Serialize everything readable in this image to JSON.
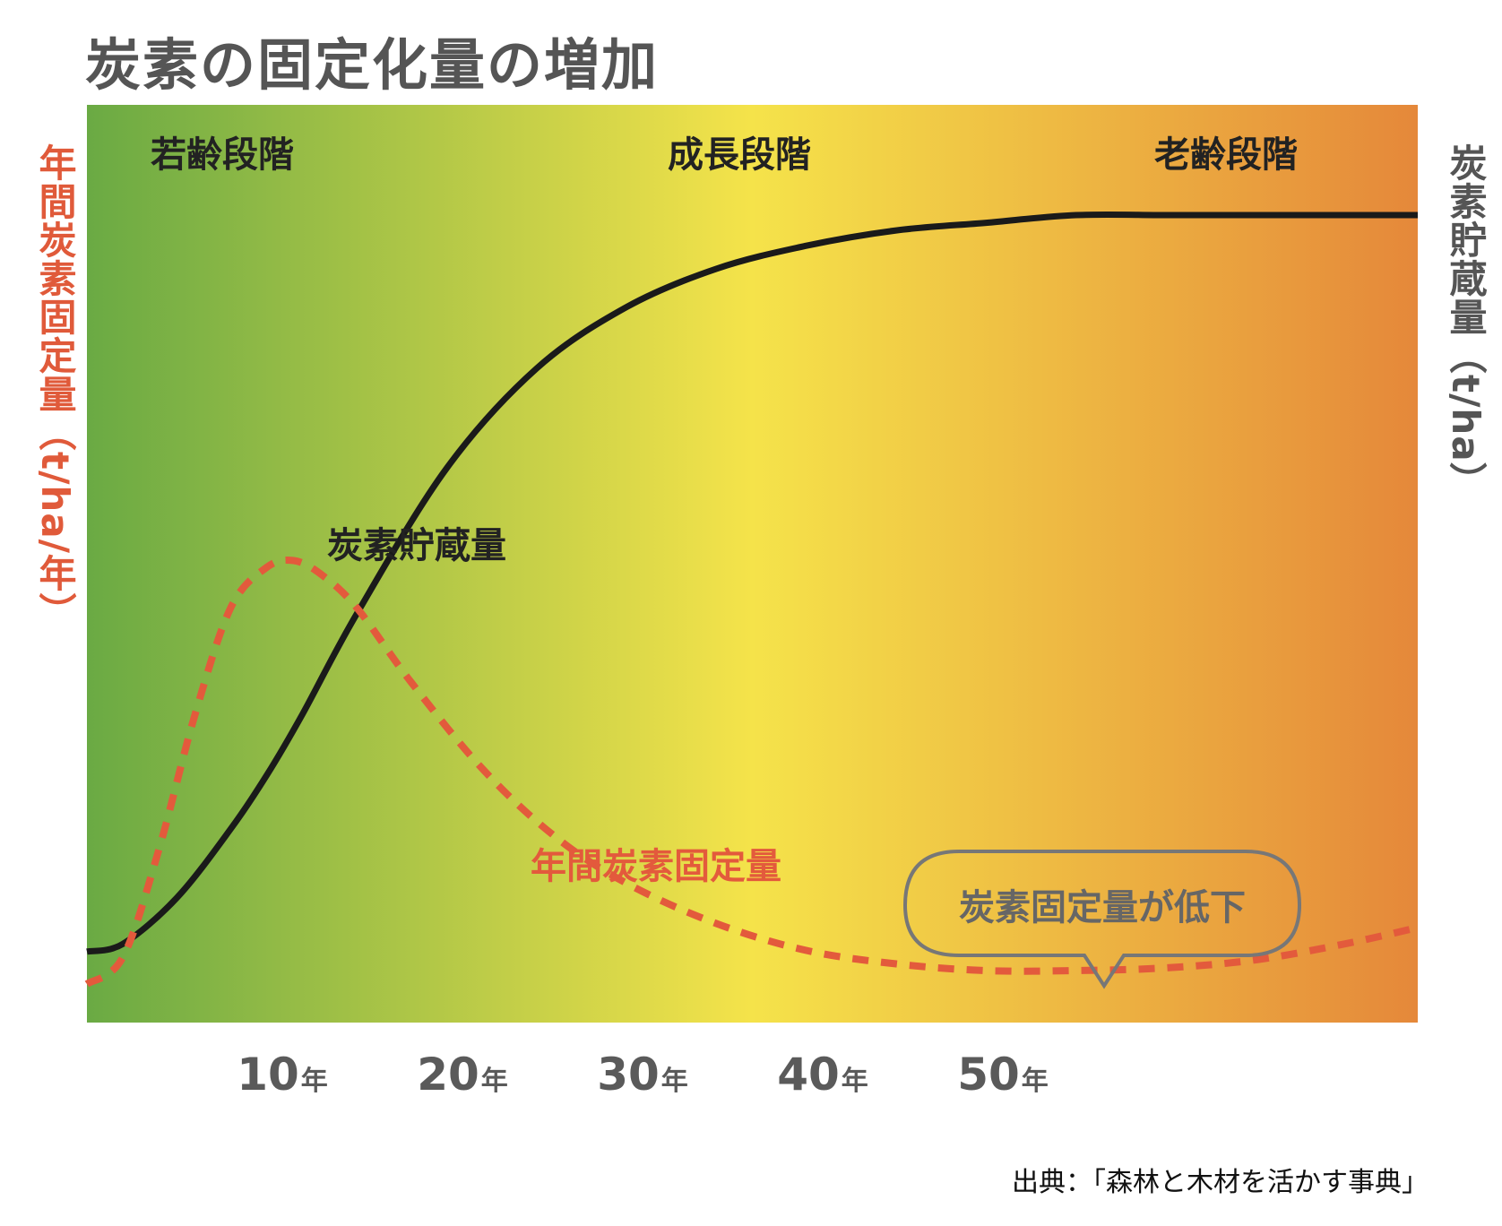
{
  "title": "炭素の固定化量の増加",
  "source": "出典：「森林と木材を活かす事典」",
  "colors": {
    "gradient_start": "#6aaa44",
    "gradient_mid": "#f5e34a",
    "gradient_end": "#e5883a",
    "storage_line": "#1a1a1a",
    "fixation_line": "#e35a3c",
    "callout_border": "#777777"
  },
  "chart_data": {
    "type": "line",
    "title": "炭素の固定化量の増加",
    "xlabel": "",
    "ylabel_left": "年間炭素固定量（t/ha/年）",
    "ylabel_right": "炭素貯蔵量（t/ha）",
    "x_ticks": [
      {
        "value": 10,
        "num": "10",
        "unit": "年"
      },
      {
        "value": 20,
        "num": "20",
        "unit": "年"
      },
      {
        "value": 30,
        "num": "30",
        "unit": "年"
      },
      {
        "value": 40,
        "num": "40",
        "unit": "年"
      },
      {
        "value": 50,
        "num": "50",
        "unit": "年"
      }
    ],
    "xlim": [
      0,
      74
    ],
    "ylim": [
      0,
      100
    ],
    "grid": false,
    "stages": [
      "若齢段階",
      "成長段階",
      "老齢段階"
    ],
    "series": [
      {
        "name": "炭素貯蔵量",
        "style": "solid",
        "x": [
          0,
          2,
          5,
          8,
          10,
          12,
          15,
          20,
          25,
          30,
          35,
          40,
          45,
          50,
          55,
          60,
          65,
          70,
          74
        ],
        "y": [
          4,
          5,
          11,
          20,
          27,
          35,
          48,
          67,
          80,
          88,
          93,
          96,
          98,
          99,
          100,
          100,
          100,
          100,
          100
        ]
      },
      {
        "name": "年間炭素固定量",
        "style": "dashed",
        "x": [
          0,
          2,
          4,
          6,
          8,
          10,
          11.5,
          13,
          15,
          18,
          22,
          26,
          30,
          35,
          40,
          45,
          50,
          55,
          60,
          65,
          70,
          74
        ],
        "y": [
          0,
          2,
          10,
          20,
          28,
          31,
          31.5,
          30.5,
          28,
          22.5,
          16,
          11,
          7.5,
          4.5,
          2.5,
          1.5,
          1.0,
          1.0,
          1.2,
          1.8,
          3.0,
          4.2
        ]
      }
    ],
    "annotations": [
      "炭素固定量が低下"
    ]
  }
}
